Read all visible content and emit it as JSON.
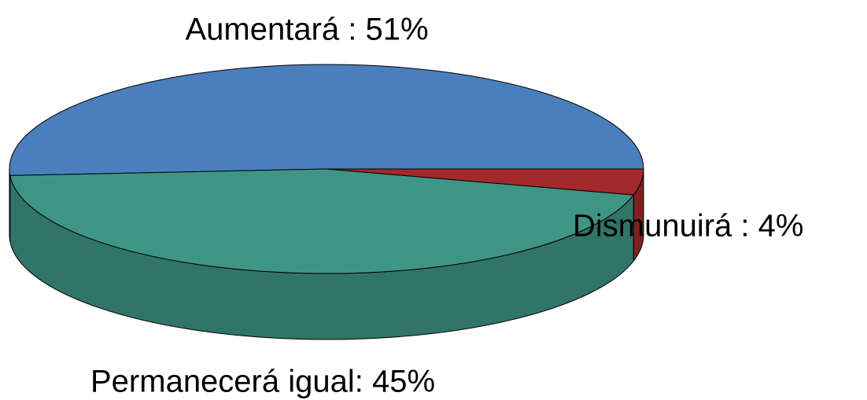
{
  "chart_data": {
    "type": "pie3d",
    "values": [
      51,
      45,
      4
    ],
    "value_labels": [
      "Aumentará : 51%",
      "Permanecerá igual:  45%",
      "Dismunuirá :  4%"
    ],
    "colors": [
      "#4a7fbd",
      "#3f9585",
      "#a32a2a"
    ]
  }
}
